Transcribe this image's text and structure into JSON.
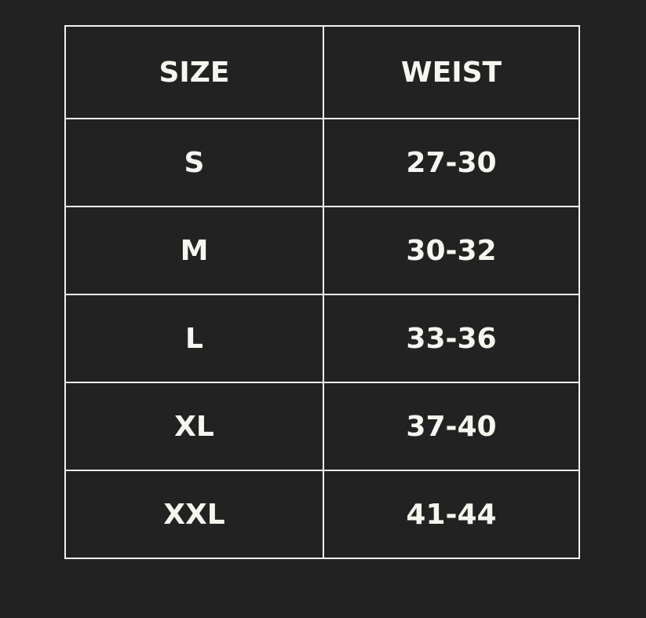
{
  "table": {
    "headers": [
      "SIZE",
      "WEIST"
    ],
    "rows": [
      [
        "S",
        "27-30"
      ],
      [
        "M",
        "30-32"
      ],
      [
        "L",
        "33-36"
      ],
      [
        "XL",
        "37-40"
      ],
      [
        "XXL",
        "41-44"
      ]
    ]
  },
  "colors": {
    "background": "#222222",
    "border": "#f2f2f2",
    "text": "#f7f5ef"
  }
}
